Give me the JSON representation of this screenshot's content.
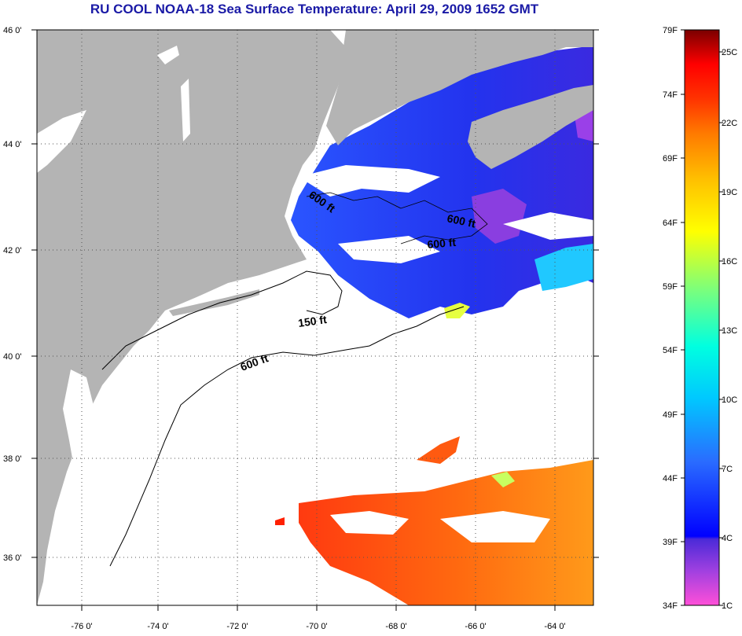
{
  "title": "RU COOL  NOAA-18  Sea Surface Temperature:  April 29, 2009 1652 GMT",
  "map": {
    "lat_labels": [
      "46 0'",
      "44 0'",
      "42 0'",
      "40 0'",
      "38 0'",
      "36 0'"
    ],
    "lon_labels": [
      "-76 0'",
      "-74 0'",
      "-72 0'",
      "-70 0'",
      "-68 0'",
      "-66 0'",
      "-64 0'"
    ],
    "contour_labels": [
      "600 ft",
      "600 ft",
      "600 ft",
      "150 ft",
      "600 ft"
    ],
    "colors": {
      "land": "#b4b4b4",
      "cloud": "#ffffff"
    }
  },
  "colorbar": {
    "fahrenheit_labels": [
      "79F",
      "74F",
      "69F",
      "64F",
      "59F",
      "54F",
      "49F",
      "44F",
      "39F",
      "34F"
    ],
    "celsius_labels": [
      "25C",
      "22C",
      "19C",
      "16C",
      "13C",
      "10C",
      "7C",
      "4C",
      "1C"
    ]
  }
}
